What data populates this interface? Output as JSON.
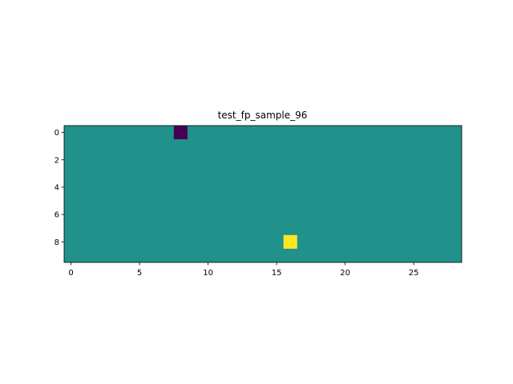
{
  "chart_data": {
    "type": "heatmap",
    "title": "test_fp_sample_96",
    "xlabel": "",
    "ylabel": "",
    "n_rows": 10,
    "n_cols": 29,
    "background_value": 0,
    "cells": [
      {
        "row": 0,
        "col": 8,
        "value": -1
      },
      {
        "row": 8,
        "col": 16,
        "value": 1
      }
    ],
    "colormap": {
      "-1": "#440154",
      "0": "#21918c",
      "1": "#fde725"
    },
    "x_ticks": [
      0,
      5,
      10,
      15,
      20,
      25
    ],
    "y_ticks": [
      0,
      2,
      4,
      6,
      8
    ],
    "x_tick_labels": [
      "0",
      "5",
      "10",
      "15",
      "20",
      "25"
    ],
    "y_tick_labels": [
      "0",
      "2",
      "4",
      "6",
      "8"
    ],
    "xlim": [
      -0.5,
      28.5
    ],
    "ylim": [
      9.5,
      -0.5
    ],
    "grid": false
  }
}
